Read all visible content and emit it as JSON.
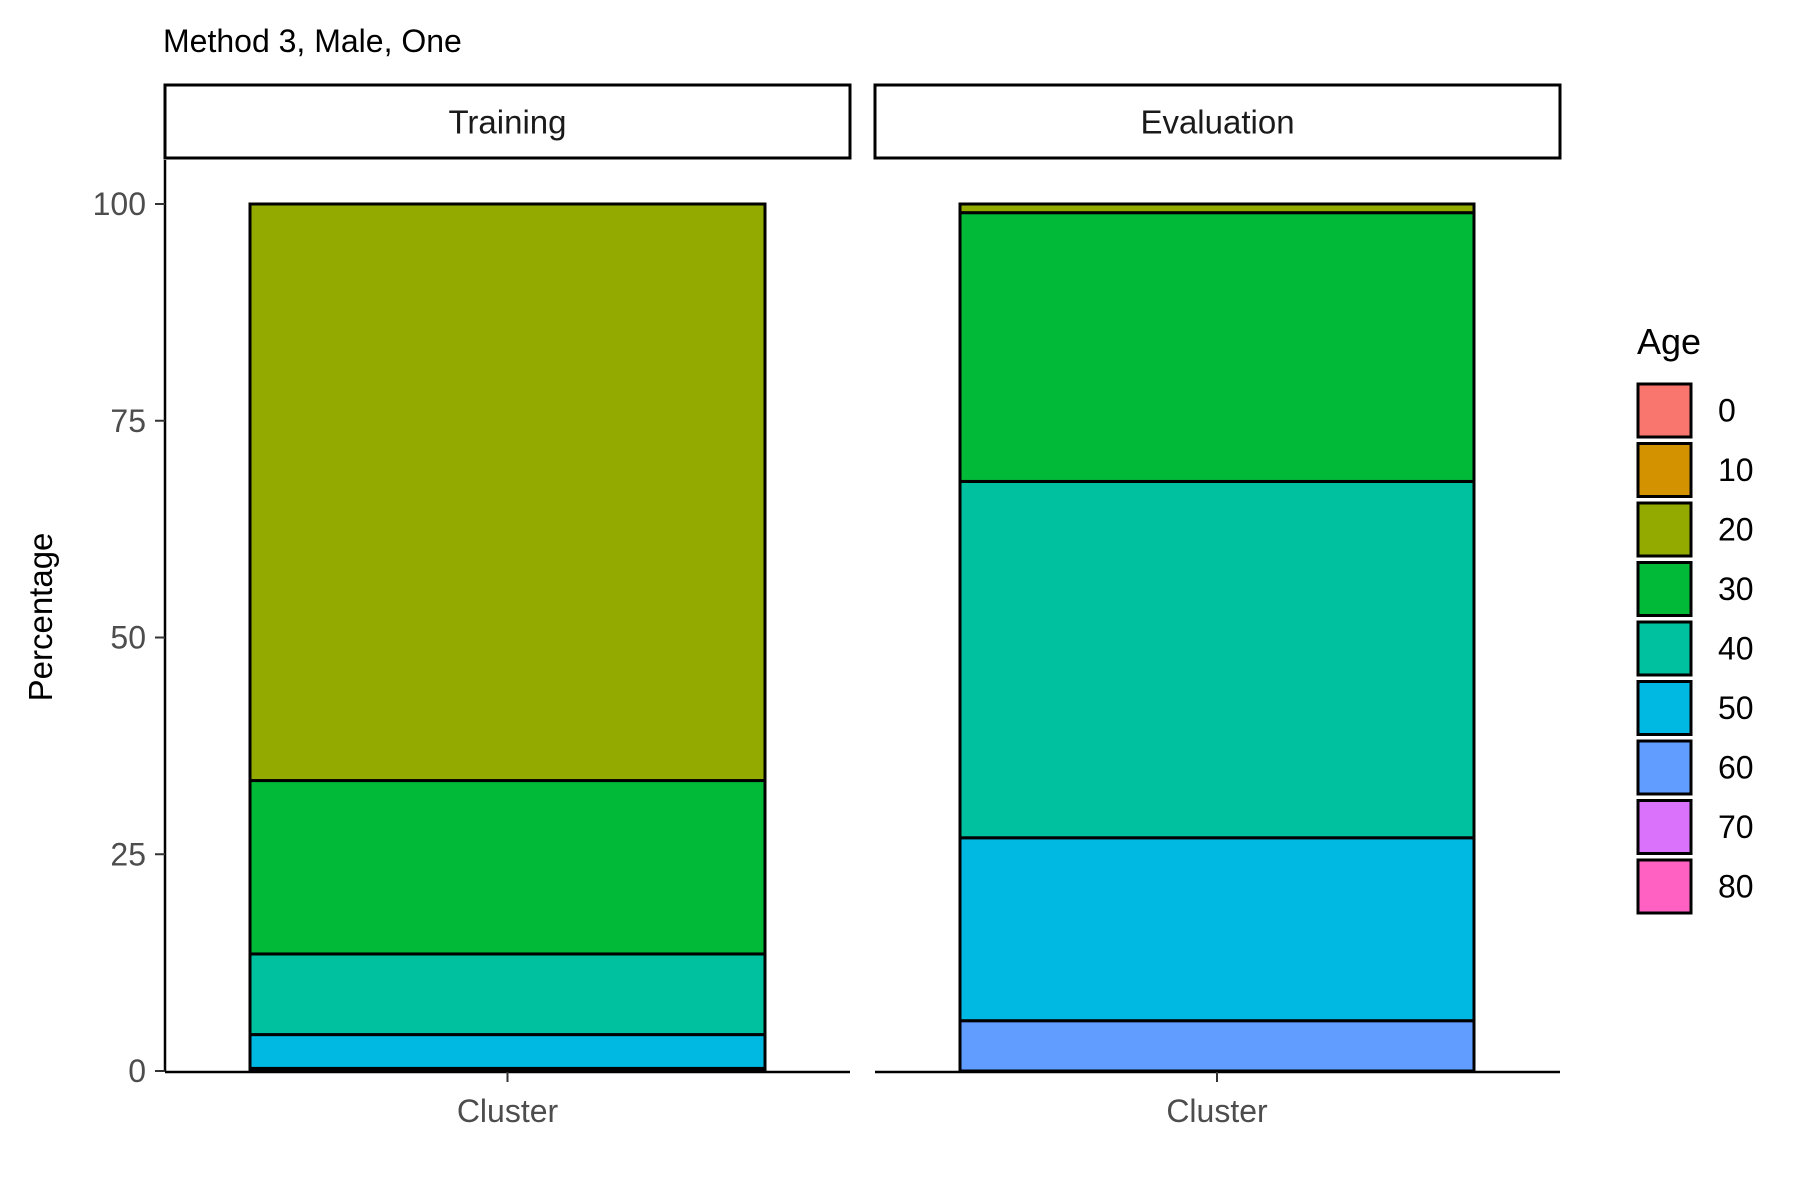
{
  "chart_data": {
    "type": "bar",
    "stacked": true,
    "title": "Method 3, Male, One",
    "ylabel": "Percentage",
    "ylim": [
      0,
      100
    ],
    "yticks": [
      0,
      25,
      50,
      75,
      100
    ],
    "grid": false,
    "legend": {
      "title": "Age",
      "position": "right",
      "entries": [
        {
          "label": "0",
          "color": "#F8766D"
        },
        {
          "label": "10",
          "color": "#D39200"
        },
        {
          "label": "20",
          "color": "#93AA00"
        },
        {
          "label": "30",
          "color": "#00BA38"
        },
        {
          "label": "40",
          "color": "#00C19F"
        },
        {
          "label": "50",
          "color": "#00B9E3"
        },
        {
          "label": "60",
          "color": "#619CFF"
        },
        {
          "label": "70",
          "color": "#DB72FB"
        },
        {
          "label": "80",
          "color": "#FF61C3"
        }
      ]
    },
    "panels": [
      {
        "name": "Training",
        "category": "Cluster",
        "segments": [
          {
            "age": "60",
            "value": 0.3
          },
          {
            "age": "50",
            "value": 3.9
          },
          {
            "age": "40",
            "value": 9.3
          },
          {
            "age": "30",
            "value": 20.0
          },
          {
            "age": "20",
            "value": 66.5
          }
        ]
      },
      {
        "name": "Evaluation",
        "category": "Cluster",
        "segments": [
          {
            "age": "60",
            "value": 5.8
          },
          {
            "age": "50",
            "value": 21.1
          },
          {
            "age": "40",
            "value": 41.1
          },
          {
            "age": "30",
            "value": 31.0
          },
          {
            "age": "20",
            "value": 1.0
          }
        ]
      }
    ]
  }
}
